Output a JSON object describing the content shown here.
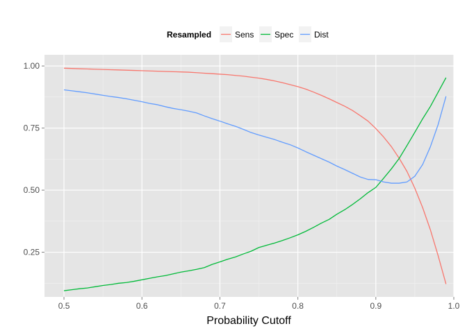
{
  "chart_data": {
    "type": "line",
    "xlabel": "Probability Cutoff",
    "ylabel": "",
    "xlim": [
      0.475,
      1.0
    ],
    "ylim": [
      0.07,
      1.045
    ],
    "x_ticks": [
      0.5,
      0.6,
      0.7,
      0.8,
      0.9,
      1.0
    ],
    "x_tick_labels": [
      "0.5",
      "0.6",
      "0.7",
      "0.8",
      "0.9",
      "1.0"
    ],
    "y_ticks": [
      0.25,
      0.5,
      0.75,
      1.0
    ],
    "y_tick_labels": [
      "0.25",
      "0.50",
      "0.75",
      "1.00"
    ],
    "grid": true,
    "legend": {
      "title": "Resampled",
      "placement": "top"
    },
    "x": [
      0.5,
      0.51,
      0.52,
      0.53,
      0.54,
      0.55,
      0.56,
      0.57,
      0.58,
      0.59,
      0.6,
      0.61,
      0.62,
      0.63,
      0.64,
      0.65,
      0.66,
      0.67,
      0.68,
      0.69,
      0.7,
      0.71,
      0.72,
      0.73,
      0.74,
      0.75,
      0.76,
      0.77,
      0.78,
      0.79,
      0.8,
      0.81,
      0.82,
      0.83,
      0.84,
      0.85,
      0.86,
      0.87,
      0.88,
      0.89,
      0.9,
      0.91,
      0.92,
      0.93,
      0.94,
      0.95,
      0.96,
      0.97,
      0.98,
      0.99
    ],
    "series": [
      {
        "name": "Sens",
        "color": "#F8766D",
        "values": [
          0.991,
          0.99,
          0.989,
          0.988,
          0.987,
          0.986,
          0.985,
          0.984,
          0.983,
          0.982,
          0.981,
          0.98,
          0.979,
          0.978,
          0.977,
          0.976,
          0.975,
          0.973,
          0.971,
          0.969,
          0.967,
          0.965,
          0.962,
          0.959,
          0.955,
          0.951,
          0.946,
          0.94,
          0.933,
          0.925,
          0.917,
          0.907,
          0.895,
          0.882,
          0.868,
          0.853,
          0.838,
          0.821,
          0.8,
          0.778,
          0.748,
          0.714,
          0.675,
          0.628,
          0.575,
          0.508,
          0.43,
          0.34,
          0.235,
          0.122
        ]
      },
      {
        "name": "Spec",
        "color": "#00BA38",
        "values": [
          0.095,
          0.099,
          0.103,
          0.106,
          0.111,
          0.116,
          0.12,
          0.125,
          0.128,
          0.133,
          0.139,
          0.145,
          0.151,
          0.156,
          0.163,
          0.17,
          0.175,
          0.181,
          0.188,
          0.201,
          0.211,
          0.222,
          0.231,
          0.243,
          0.254,
          0.269,
          0.278,
          0.287,
          0.297,
          0.308,
          0.32,
          0.334,
          0.35,
          0.367,
          0.382,
          0.403,
          0.421,
          0.442,
          0.465,
          0.49,
          0.511,
          0.548,
          0.586,
          0.628,
          0.68,
          0.733,
          0.787,
          0.837,
          0.895,
          0.953
        ]
      },
      {
        "name": "Dist",
        "color": "#619CFF",
        "values": [
          0.904,
          0.9,
          0.896,
          0.892,
          0.887,
          0.882,
          0.877,
          0.873,
          0.868,
          0.862,
          0.856,
          0.849,
          0.844,
          0.836,
          0.829,
          0.824,
          0.818,
          0.811,
          0.799,
          0.788,
          0.778,
          0.767,
          0.757,
          0.745,
          0.732,
          0.722,
          0.713,
          0.704,
          0.693,
          0.683,
          0.67,
          0.655,
          0.641,
          0.627,
          0.613,
          0.597,
          0.583,
          0.568,
          0.553,
          0.543,
          0.542,
          0.533,
          0.528,
          0.528,
          0.533,
          0.556,
          0.603,
          0.675,
          0.765,
          0.878
        ]
      }
    ]
  }
}
